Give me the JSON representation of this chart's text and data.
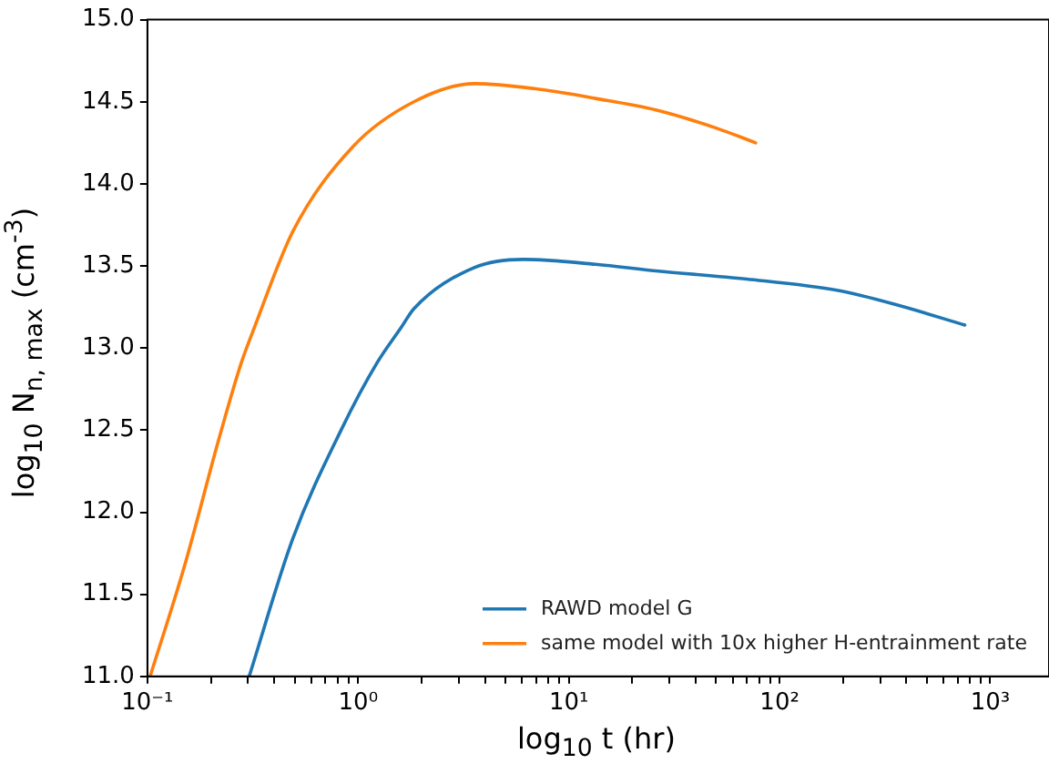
{
  "chart_data": {
    "type": "line",
    "xlabel": "log$_{10}$ t (hr)",
    "ylabel": "log$_{10}$ N$_{n, max}$ (cm$^{-3}$)",
    "log": "x",
    "xlim": [
      0.1,
      1900
    ],
    "ylim": [
      11,
      15
    ],
    "xticks": [
      {
        "value": 0.1,
        "label": "10⁻¹"
      },
      {
        "value": 0.2,
        "label": null
      },
      {
        "value": 0.3,
        "label": null
      },
      {
        "value": 0.4,
        "label": null
      },
      {
        "value": 0.5,
        "label": null
      },
      {
        "value": 0.6,
        "label": null
      },
      {
        "value": 0.7,
        "label": null
      },
      {
        "value": 0.8,
        "label": null
      },
      {
        "value": 0.9,
        "label": null
      },
      {
        "value": 1,
        "label": "10⁰"
      },
      {
        "value": 2,
        "label": null
      },
      {
        "value": 3,
        "label": null
      },
      {
        "value": 4,
        "label": null
      },
      {
        "value": 5,
        "label": null
      },
      {
        "value": 6,
        "label": null
      },
      {
        "value": 7,
        "label": null
      },
      {
        "value": 8,
        "label": null
      },
      {
        "value": 9,
        "label": null
      },
      {
        "value": 10,
        "label": "10¹"
      },
      {
        "value": 20,
        "label": null
      },
      {
        "value": 30,
        "label": null
      },
      {
        "value": 40,
        "label": null
      },
      {
        "value": 50,
        "label": null
      },
      {
        "value": 60,
        "label": null
      },
      {
        "value": 70,
        "label": null
      },
      {
        "value": 80,
        "label": null
      },
      {
        "value": 90,
        "label": null
      },
      {
        "value": 100,
        "label": "10²"
      },
      {
        "value": 200,
        "label": null
      },
      {
        "value": 300,
        "label": null
      },
      {
        "value": 400,
        "label": null
      },
      {
        "value": 500,
        "label": null
      },
      {
        "value": 600,
        "label": null
      },
      {
        "value": 700,
        "label": null
      },
      {
        "value": 800,
        "label": null
      },
      {
        "value": 900,
        "label": null
      },
      {
        "value": 1000,
        "label": "10³"
      }
    ],
    "yticks": [
      {
        "value": 11,
        "label": "11.0"
      },
      {
        "value": 11.5,
        "label": "11.5"
      },
      {
        "value": 12,
        "label": "12.0"
      },
      {
        "value": 12.5,
        "label": "12.5"
      },
      {
        "value": 13,
        "label": "13.0"
      },
      {
        "value": 13.5,
        "label": "13.5"
      },
      {
        "value": 14,
        "label": "14.0"
      },
      {
        "value": 14.5,
        "label": "14.5"
      },
      {
        "value": 15,
        "label": "15.0"
      }
    ],
    "grid": false,
    "legend": "bottom right",
    "marker": "none",
    "line_style": "solid",
    "series": [
      {
        "name": "RAWD model G",
        "color": "#1f77b4",
        "x": [
          0.304,
          0.49,
          0.83,
          1.23,
          1.61,
          1.84,
          3.56,
          6.1,
          13.4,
          25.9,
          70,
          190,
          366,
          757
        ],
        "values": [
          11.0,
          11.84,
          12.5,
          12.91,
          13.13,
          13.24,
          13.49,
          13.54,
          13.51,
          13.47,
          13.42,
          13.35,
          13.26,
          13.14
        ]
      },
      {
        "name": "same model with 10x higher H-entrainment rate",
        "color": "#ff7f0e",
        "x": [
          0.103,
          0.149,
          0.221,
          0.279,
          0.323,
          0.49,
          0.95,
          1.84,
          3.56,
          6.86,
          13.4,
          25.9,
          50,
          77
        ],
        "values": [
          11.0,
          11.66,
          12.47,
          12.91,
          13.13,
          13.71,
          14.23,
          14.5,
          14.61,
          14.58,
          14.52,
          14.45,
          14.34,
          14.25
        ]
      }
    ]
  }
}
